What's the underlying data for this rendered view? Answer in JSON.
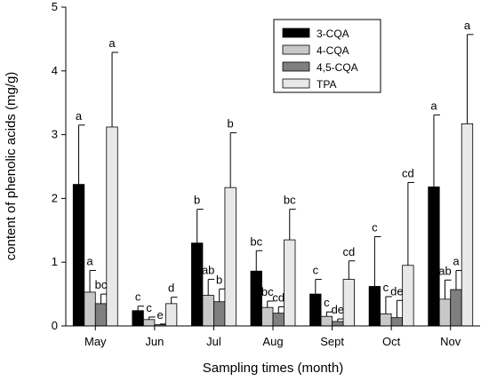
{
  "chart_data": {
    "type": "bar",
    "title": "",
    "xlabel": "Sampling times (month)",
    "ylabel": "content of phenolic acids (mg/g)",
    "ylim": [
      0,
      5
    ],
    "yticks": [
      0,
      1,
      2,
      3,
      4,
      5
    ],
    "grid": false,
    "legend_position": "top-right",
    "categories": [
      "May",
      "Jun",
      "Jul",
      "Aug",
      "Sept",
      "Oct",
      "Nov"
    ],
    "series": [
      {
        "name": "3-CQA",
        "color": "#000000",
        "values": [
          2.22,
          0.24,
          1.3,
          0.86,
          0.5,
          0.62,
          2.18
        ],
        "errors": [
          0.93,
          0.07,
          0.53,
          0.32,
          0.23,
          0.78,
          1.13
        ],
        "letters": [
          "a",
          "c",
          "b",
          "bc",
          "c",
          "c",
          "a"
        ]
      },
      {
        "name": "4-CQA",
        "color": "#c8c8c8",
        "values": [
          0.53,
          0.1,
          0.48,
          0.29,
          0.15,
          0.19,
          0.42
        ],
        "errors": [
          0.34,
          0.04,
          0.25,
          0.1,
          0.07,
          0.27,
          0.3
        ],
        "letters": [
          "a",
          "c",
          "ab",
          "bc",
          "c",
          "c",
          "ab"
        ]
      },
      {
        "name": "4,5-CQA",
        "color": "#7f7f7f",
        "values": [
          0.35,
          0.02,
          0.38,
          0.2,
          0.07,
          0.13,
          0.57
        ],
        "errors": [
          0.15,
          0.01,
          0.2,
          0.1,
          0.04,
          0.27,
          0.3
        ],
        "letters": [
          "bc",
          "e",
          "b",
          "cd",
          "de",
          "de",
          "a"
        ]
      },
      {
        "name": "TPA",
        "color": "#e8e8e8",
        "values": [
          3.12,
          0.35,
          2.17,
          1.35,
          0.73,
          0.95,
          3.17
        ],
        "errors": [
          1.17,
          0.1,
          0.86,
          0.48,
          0.29,
          1.3,
          1.4
        ],
        "letters": [
          "a",
          "d",
          "b",
          "bc",
          "cd",
          "cd",
          "a"
        ]
      }
    ]
  }
}
